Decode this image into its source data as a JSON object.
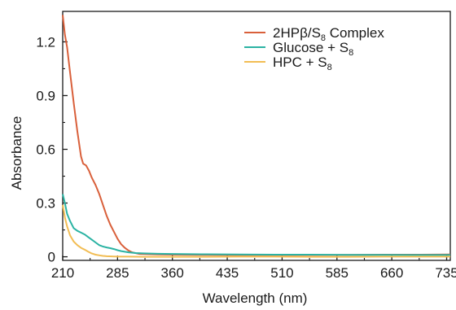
{
  "chart_data": {
    "type": "line",
    "xlabel": "Wavelength (nm)",
    "ylabel": "Absorbance",
    "xlim": [
      210,
      740
    ],
    "ylim": [
      -0.02,
      1.37
    ],
    "xticks": [
      210,
      285,
      360,
      435,
      510,
      585,
      660,
      735
    ],
    "xtick_labels": [
      "210",
      "285",
      "360",
      "435",
      "510",
      "585",
      "660",
      "735"
    ],
    "yticks": [
      0,
      0.3,
      0.6,
      0.9,
      1.2
    ],
    "ytick_labels": [
      "0",
      "0.3",
      "0.6",
      "0.9",
      "1.2"
    ],
    "grid": false,
    "legend_position": "top-right",
    "series": [
      {
        "name": "2HPβ/S8 Complex",
        "legend_main": "2HPβ/S",
        "legend_sub": "8",
        "legend_tail": " Complex",
        "color": "#d9603b",
        "x": [
          210,
          213,
          216,
          220,
          225,
          230,
          235,
          238,
          242,
          246,
          250,
          255,
          260,
          265,
          270,
          275,
          280,
          285,
          290,
          295,
          300,
          305,
          310,
          315,
          320,
          330,
          340,
          360,
          400,
          450,
          500,
          550,
          600,
          650,
          700,
          740
        ],
        "y": [
          1.35,
          1.24,
          1.17,
          1.03,
          0.86,
          0.7,
          0.56,
          0.52,
          0.51,
          0.48,
          0.44,
          0.4,
          0.35,
          0.29,
          0.23,
          0.18,
          0.14,
          0.1,
          0.07,
          0.05,
          0.035,
          0.025,
          0.02,
          0.016,
          0.015,
          0.014,
          0.013,
          0.012,
          0.011,
          0.01,
          0.01,
          0.01,
          0.011,
          0.012,
          0.012,
          0.013
        ]
      },
      {
        "name": "Glucose + S8",
        "legend_main": "Glucose + S",
        "legend_sub": "8",
        "legend_tail": "",
        "color": "#2bb3a3",
        "x": [
          210,
          213,
          216,
          220,
          225,
          230,
          235,
          240,
          245,
          250,
          255,
          260,
          265,
          270,
          275,
          280,
          285,
          290,
          295,
          300,
          310,
          320,
          340,
          360,
          400,
          450,
          500,
          550,
          600,
          650,
          700,
          740
        ],
        "y": [
          0.35,
          0.3,
          0.24,
          0.2,
          0.16,
          0.145,
          0.135,
          0.125,
          0.11,
          0.095,
          0.08,
          0.065,
          0.057,
          0.052,
          0.048,
          0.043,
          0.037,
          0.032,
          0.028,
          0.025,
          0.021,
          0.019,
          0.017,
          0.016,
          0.014,
          0.013,
          0.012,
          0.012,
          0.011,
          0.011,
          0.01,
          0.01
        ]
      },
      {
        "name": "HPC + S8",
        "legend_main": "HPC + S",
        "legend_sub": "8",
        "legend_tail": "",
        "color": "#f2bd54",
        "x": [
          210,
          213,
          216,
          220,
          225,
          230,
          235,
          240,
          245,
          250,
          255,
          260,
          265,
          270,
          280,
          290,
          300,
          320,
          360,
          400,
          450,
          500,
          550,
          600,
          650,
          700,
          740
        ],
        "y": [
          0.29,
          0.22,
          0.17,
          0.12,
          0.085,
          0.065,
          0.05,
          0.04,
          0.028,
          0.018,
          0.012,
          0.008,
          0.005,
          0.003,
          0.002,
          0.001,
          0.001,
          0.0,
          0.0,
          0.0,
          0.001,
          0.001,
          0.0,
          0.0,
          0.001,
          0.001,
          0.001
        ]
      }
    ]
  }
}
